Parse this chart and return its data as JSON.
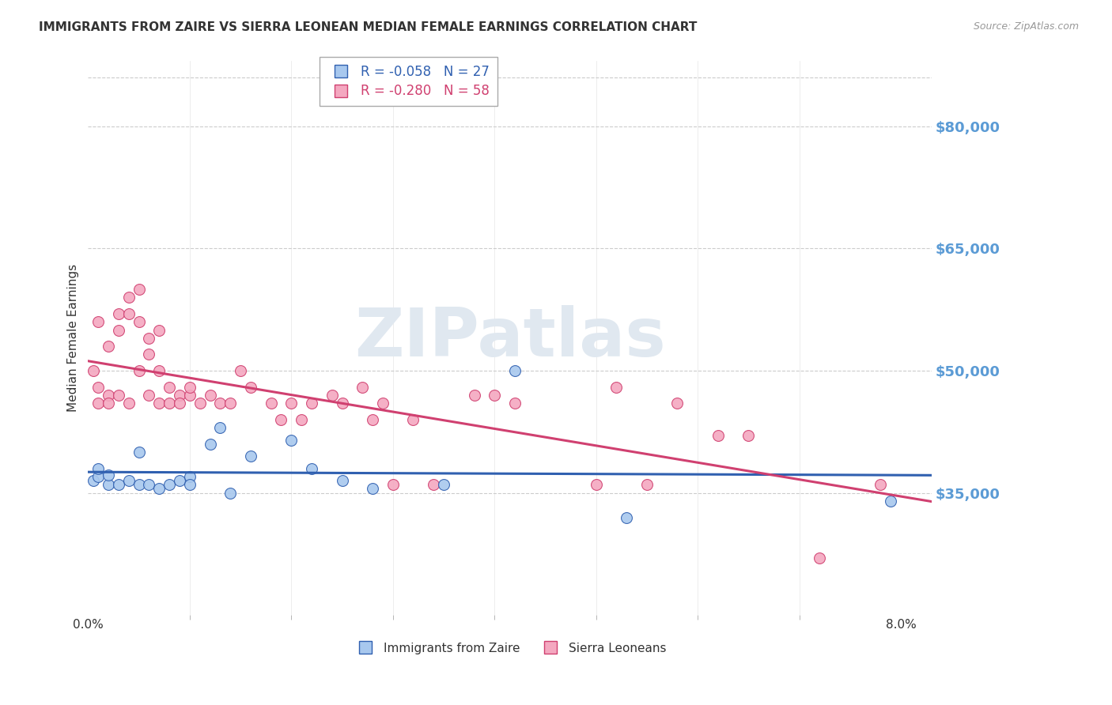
{
  "title": "IMMIGRANTS FROM ZAIRE VS SIERRA LEONEAN MEDIAN FEMALE EARNINGS CORRELATION CHART",
  "source": "Source: ZipAtlas.com",
  "ylabel": "Median Female Earnings",
  "legend_labels": [
    "Immigrants from Zaire",
    "Sierra Leoneans"
  ],
  "legend_R": [
    -0.058,
    -0.28
  ],
  "legend_N": [
    27,
    58
  ],
  "color_blue": "#A8C8EE",
  "color_pink": "#F4A8C0",
  "line_color_blue": "#3060B0",
  "line_color_pink": "#D04070",
  "title_color": "#333333",
  "right_axis_color": "#5B9BD5",
  "source_color": "#999999",
  "background_color": "#FFFFFF",
  "grid_color": "#CCCCCC",
  "ylim": [
    20000,
    88000
  ],
  "xlim": [
    0.0,
    0.083
  ],
  "yticks": [
    35000,
    50000,
    65000,
    80000
  ],
  "ytick_labels": [
    "$35,000",
    "$50,000",
    "$65,000",
    "$80,000"
  ],
  "xtick_positions": [
    0.0,
    0.08
  ],
  "xtick_labels": [
    "0.0%",
    "8.0%"
  ],
  "zaire_x": [
    0.0005,
    0.001,
    0.001,
    0.002,
    0.002,
    0.003,
    0.004,
    0.005,
    0.005,
    0.006,
    0.007,
    0.008,
    0.009,
    0.01,
    0.01,
    0.012,
    0.013,
    0.014,
    0.016,
    0.02,
    0.022,
    0.025,
    0.028,
    0.035,
    0.042,
    0.053,
    0.079
  ],
  "zaire_y": [
    36500,
    37000,
    38000,
    36000,
    37200,
    36000,
    36500,
    40000,
    36000,
    36000,
    35500,
    36000,
    36500,
    37000,
    36000,
    41000,
    43000,
    35000,
    39500,
    41500,
    38000,
    36500,
    35500,
    36000,
    50000,
    32000,
    34000
  ],
  "sierra_x": [
    0.0005,
    0.001,
    0.001,
    0.001,
    0.002,
    0.002,
    0.002,
    0.003,
    0.003,
    0.003,
    0.004,
    0.004,
    0.004,
    0.005,
    0.005,
    0.005,
    0.006,
    0.006,
    0.006,
    0.007,
    0.007,
    0.007,
    0.008,
    0.008,
    0.009,
    0.009,
    0.01,
    0.01,
    0.011,
    0.012,
    0.013,
    0.014,
    0.015,
    0.016,
    0.018,
    0.019,
    0.02,
    0.021,
    0.022,
    0.024,
    0.025,
    0.027,
    0.028,
    0.029,
    0.03,
    0.032,
    0.034,
    0.038,
    0.04,
    0.042,
    0.05,
    0.052,
    0.055,
    0.058,
    0.062,
    0.065,
    0.072,
    0.078
  ],
  "sierra_y": [
    50000,
    56000,
    48000,
    46000,
    53000,
    47000,
    46000,
    57000,
    55000,
    47000,
    59000,
    57000,
    46000,
    60000,
    56000,
    50000,
    54000,
    52000,
    47000,
    55000,
    50000,
    46000,
    48000,
    46000,
    47000,
    46000,
    47000,
    48000,
    46000,
    47000,
    46000,
    46000,
    50000,
    48000,
    46000,
    44000,
    46000,
    44000,
    46000,
    47000,
    46000,
    48000,
    44000,
    46000,
    36000,
    44000,
    36000,
    47000,
    47000,
    46000,
    36000,
    48000,
    36000,
    46000,
    42000,
    42000,
    27000,
    36000
  ],
  "watermark_text": "ZIPatlas",
  "watermark_color": "#E0E8F0",
  "marker_size": 100
}
